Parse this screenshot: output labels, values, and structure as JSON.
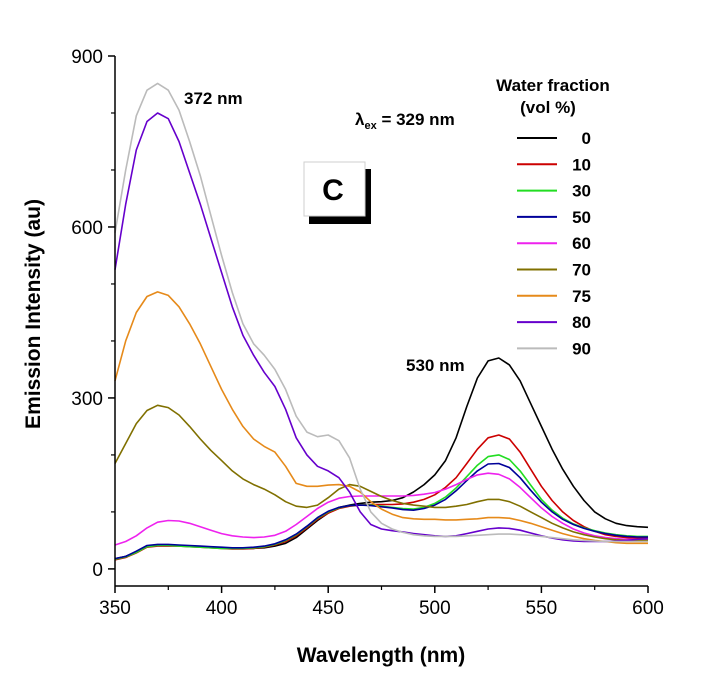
{
  "chart_data": {
    "type": "line",
    "xlabel": "Wavelength (nm)",
    "ylabel": "Emission Intensity (au)",
    "xlim": [
      350,
      600
    ],
    "ylim": [
      -30,
      900
    ],
    "xticks": [
      350,
      400,
      450,
      500,
      550,
      600
    ],
    "yticks": [
      0,
      300,
      600,
      900
    ],
    "xtick_labels": [
      "350",
      "400",
      "450",
      "500",
      "550",
      "600"
    ],
    "ytick_labels": [
      "0",
      "300",
      "600",
      "900"
    ],
    "grid": false,
    "legend": {
      "title_line1": "Water fraction",
      "title_line2": "(vol %)",
      "placement": "top-right"
    },
    "annotations": {
      "peak_short": "372 nm",
      "peak_long": "530 nm",
      "excitation_symbol": "λ",
      "excitation_sub": "ex",
      "excitation_value": " = 329 nm",
      "panel": "C"
    },
    "x": [
      350,
      355,
      360,
      365,
      370,
      375,
      380,
      385,
      390,
      395,
      400,
      405,
      410,
      415,
      420,
      425,
      430,
      435,
      440,
      445,
      450,
      455,
      460,
      465,
      470,
      475,
      480,
      485,
      490,
      495,
      500,
      505,
      510,
      515,
      520,
      525,
      530,
      535,
      540,
      545,
      550,
      555,
      560,
      565,
      570,
      575,
      580,
      585,
      590,
      595,
      600
    ],
    "series": [
      {
        "name": "0",
        "color": "#000000",
        "values": [
          18,
          22,
          30,
          40,
          42,
          42,
          41,
          40,
          39,
          38,
          37,
          36,
          36,
          36,
          37,
          40,
          45,
          55,
          70,
          85,
          98,
          108,
          112,
          115,
          117,
          118,
          120,
          125,
          135,
          148,
          165,
          190,
          230,
          285,
          335,
          365,
          370,
          358,
          330,
          290,
          250,
          210,
          175,
          145,
          120,
          100,
          88,
          80,
          76,
          74,
          73
        ]
      },
      {
        "name": "10",
        "color": "#cc0000",
        "values": [
          16,
          20,
          28,
          38,
          40,
          40,
          40,
          39,
          38,
          37,
          36,
          35,
          35,
          36,
          38,
          42,
          48,
          58,
          72,
          87,
          98,
          106,
          110,
          112,
          113,
          113,
          113,
          114,
          117,
          122,
          130,
          143,
          160,
          185,
          210,
          230,
          235,
          228,
          205,
          175,
          145,
          120,
          100,
          85,
          74,
          66,
          60,
          57,
          55,
          54,
          54
        ]
      },
      {
        "name": "30",
        "color": "#22dd22",
        "values": [
          17,
          21,
          29,
          39,
          41,
          41,
          40,
          39,
          38,
          37,
          36,
          36,
          36,
          37,
          39,
          43,
          50,
          60,
          74,
          89,
          100,
          107,
          111,
          112,
          112,
          110,
          108,
          106,
          105,
          108,
          115,
          126,
          142,
          162,
          182,
          197,
          200,
          192,
          172,
          147,
          122,
          103,
          89,
          79,
          72,
          67,
          63,
          60,
          58,
          57,
          57
        ]
      },
      {
        "name": "50",
        "color": "#000099",
        "values": [
          18,
          22,
          31,
          41,
          43,
          43,
          42,
          41,
          40,
          39,
          38,
          37,
          37,
          38,
          40,
          44,
          51,
          61,
          75,
          90,
          101,
          108,
          111,
          112,
          111,
          109,
          107,
          104,
          103,
          106,
          112,
          122,
          137,
          155,
          172,
          184,
          185,
          178,
          160,
          138,
          117,
          100,
          87,
          78,
          71,
          66,
          62,
          59,
          57,
          56,
          56
        ]
      },
      {
        "name": "60",
        "color": "#ee22ee",
        "values": [
          42,
          48,
          58,
          72,
          82,
          85,
          84,
          80,
          74,
          68,
          62,
          58,
          56,
          55,
          56,
          59,
          66,
          78,
          92,
          106,
          117,
          124,
          127,
          128,
          128,
          128,
          128,
          128,
          129,
          131,
          134,
          140,
          148,
          157,
          165,
          168,
          166,
          158,
          143,
          125,
          107,
          92,
          80,
          70,
          63,
          58,
          55,
          53,
          52,
          52,
          52
        ]
      },
      {
        "name": "70",
        "color": "#807000",
        "values": [
          185,
          220,
          255,
          278,
          287,
          283,
          270,
          250,
          228,
          208,
          190,
          172,
          158,
          148,
          140,
          130,
          118,
          110,
          108,
          112,
          125,
          140,
          148,
          145,
          136,
          127,
          120,
          115,
          112,
          110,
          108,
          108,
          110,
          113,
          118,
          122,
          122,
          118,
          110,
          100,
          90,
          80,
          72,
          65,
          60,
          56,
          53,
          51,
          50,
          50,
          50
        ]
      },
      {
        "name": "75",
        "color": "#e68a1a",
        "values": [
          330,
          400,
          450,
          478,
          486,
          480,
          460,
          430,
          395,
          355,
          315,
          280,
          250,
          228,
          215,
          205,
          180,
          150,
          145,
          145,
          147,
          148,
          145,
          135,
          118,
          105,
          96,
          90,
          88,
          87,
          87,
          86,
          86,
          87,
          88,
          90,
          90,
          89,
          85,
          80,
          74,
          68,
          62,
          57,
          53,
          50,
          48,
          46,
          45,
          45,
          45
        ]
      },
      {
        "name": "80",
        "color": "#6600cc",
        "values": [
          525,
          640,
          735,
          785,
          800,
          790,
          750,
          695,
          640,
          580,
          520,
          460,
          410,
          375,
          345,
          320,
          280,
          230,
          200,
          180,
          172,
          160,
          135,
          100,
          78,
          70,
          67,
          65,
          62,
          60,
          58,
          57,
          58,
          62,
          66,
          70,
          72,
          71,
          68,
          63,
          58,
          54,
          51,
          49,
          48,
          48,
          48,
          49,
          50,
          52,
          53
        ]
      },
      {
        "name": "90",
        "color": "#bbbbbb",
        "values": [
          590,
          700,
          795,
          840,
          852,
          840,
          805,
          750,
          690,
          620,
          550,
          485,
          430,
          395,
          375,
          350,
          315,
          268,
          240,
          232,
          235,
          225,
          195,
          140,
          100,
          80,
          70,
          64,
          60,
          58,
          57,
          57,
          57,
          58,
          59,
          60,
          61,
          61,
          60,
          59,
          57,
          55,
          53,
          51,
          50,
          49,
          48,
          48,
          48,
          48,
          48
        ]
      }
    ]
  }
}
